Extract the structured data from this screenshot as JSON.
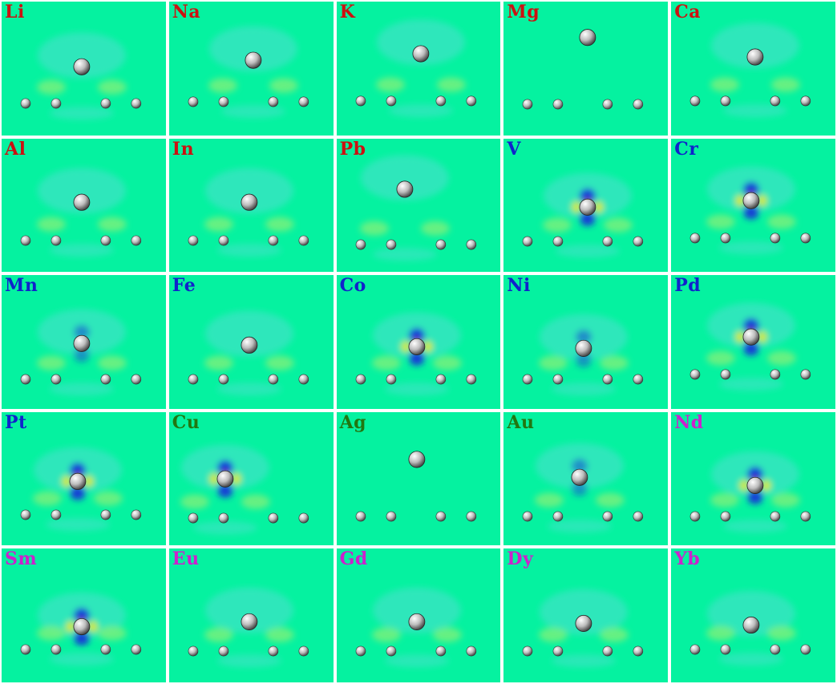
{
  "colors": {
    "background": "#05f2a0",
    "alkali_label": "#cc1111",
    "transition_label": "#1122cc",
    "noble_label": "#227711",
    "lanthanide_label": "#cc22cc"
  },
  "panels": [
    {
      "label": "Li",
      "group": "red",
      "density": "weak"
    },
    {
      "label": "Na",
      "group": "red",
      "density": "weak"
    },
    {
      "label": "K",
      "group": "red",
      "density": "weak"
    },
    {
      "label": "Mg",
      "group": "red",
      "density": "none"
    },
    {
      "label": "Ca",
      "group": "red",
      "density": "weak"
    },
    {
      "label": "Al",
      "group": "red",
      "density": "weak"
    },
    {
      "label": "In",
      "group": "red",
      "density": "weak"
    },
    {
      "label": "Pb",
      "group": "red",
      "density": "weak"
    },
    {
      "label": "V",
      "group": "blue",
      "density": "strong"
    },
    {
      "label": "Cr",
      "group": "blue",
      "density": "strong"
    },
    {
      "label": "Mn",
      "group": "blue",
      "density": "medium"
    },
    {
      "label": "Fe",
      "group": "blue",
      "density": "weak"
    },
    {
      "label": "Co",
      "group": "blue",
      "density": "strong"
    },
    {
      "label": "Ni",
      "group": "blue",
      "density": "medium"
    },
    {
      "label": "Pd",
      "group": "blue",
      "density": "strong"
    },
    {
      "label": "Pt",
      "group": "blue",
      "density": "strong"
    },
    {
      "label": "Cu",
      "group": "green",
      "density": "strong"
    },
    {
      "label": "Ag",
      "group": "green",
      "density": "none"
    },
    {
      "label": "Au",
      "group": "green",
      "density": "medium"
    },
    {
      "label": "Nd",
      "group": "magenta",
      "density": "strong"
    },
    {
      "label": "Sm",
      "group": "magenta",
      "density": "strong"
    },
    {
      "label": "Eu",
      "group": "magenta",
      "density": "weak"
    },
    {
      "label": "Gd",
      "group": "magenta",
      "density": "weak"
    },
    {
      "label": "Dy",
      "group": "magenta",
      "density": "weak"
    },
    {
      "label": "Yb",
      "group": "magenta",
      "density": "weak"
    }
  ]
}
